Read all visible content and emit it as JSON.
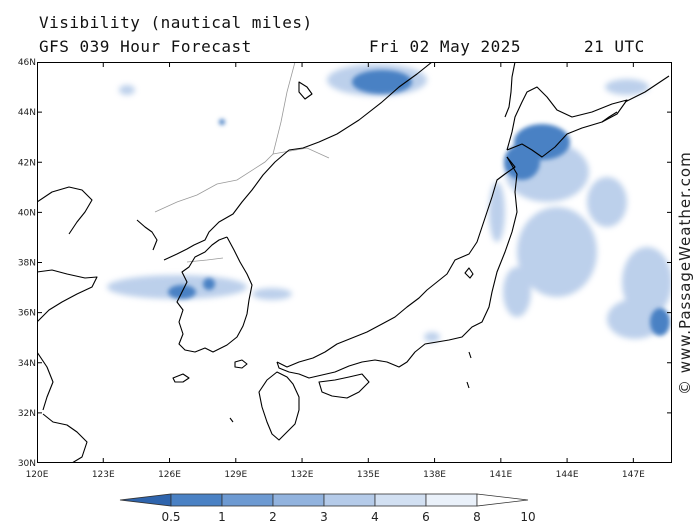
{
  "header": {
    "title": "Visibility (nautical miles)",
    "model_forecast": "GFS 039 Hour Forecast",
    "date": "Fri 02 May 2025",
    "time": "21 UTC"
  },
  "axes": {
    "latitudes": [
      "46N",
      "44N",
      "42N",
      "40N",
      "38N",
      "36N",
      "34N",
      "32N",
      "30N"
    ],
    "longitudes": [
      "120E",
      "123E",
      "126E",
      "129E",
      "132E",
      "135E",
      "138E",
      "141E",
      "144E",
      "147E"
    ]
  },
  "colorbar": {
    "labels": [
      "0.5",
      "1",
      "2",
      "3",
      "4",
      "6",
      "8",
      "10"
    ],
    "colors": [
      "#2e64ad",
      "#4a81c4",
      "#6d9ad2",
      "#92b3de",
      "#b5cbe9",
      "#d2e0f2",
      "#eaf1fa",
      "#ffffff"
    ]
  },
  "legend_credit": "© www.PassageWeather.com",
  "colors": {
    "land_border": "#000000",
    "political_border": "#9a9a9a",
    "visibility_dark": "#2e64ad",
    "visibility_light": "#b5cbe9"
  }
}
